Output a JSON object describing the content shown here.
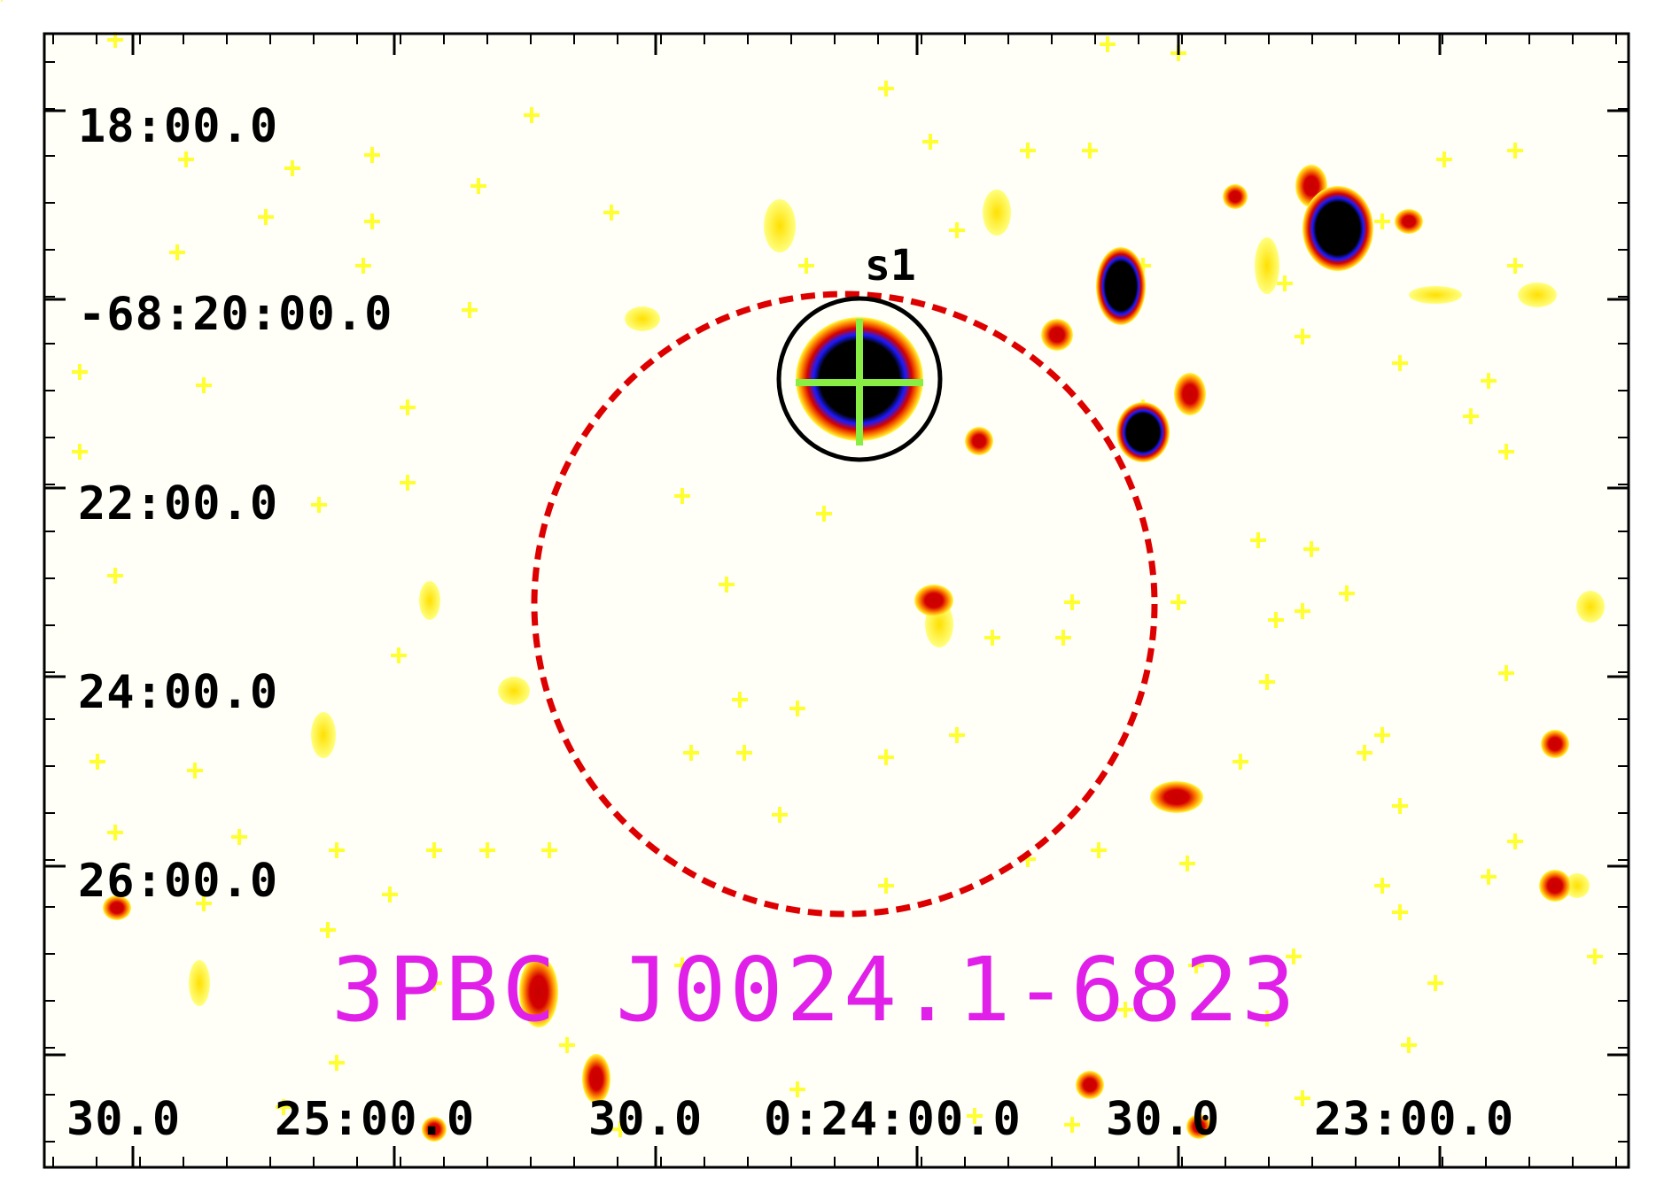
{
  "image": {
    "title": "3PBC J0024.1-6823",
    "title_color": "#e020e8",
    "colormap": [
      "#ffff40",
      "#ff8c00",
      "#d40000",
      "#1a1aff",
      "#000000"
    ],
    "background": "#fffff8"
  },
  "axes": {
    "dec_labels": [
      "18:00.0",
      "-68:20:00.0",
      "22:00.0",
      "24:00.0",
      "26:00.0"
    ],
    "ra_labels": [
      "30.0",
      "25:00.0",
      "30.0",
      "0:24:00.0",
      "30.0",
      "23:00.0"
    ]
  },
  "regions": {
    "error_circle": {
      "style": "dashed",
      "color": "#dd0000"
    },
    "source_circle": {
      "label": "s1",
      "color": "#000000"
    },
    "marker": {
      "shape": "cross",
      "color": "#88ee44"
    }
  }
}
